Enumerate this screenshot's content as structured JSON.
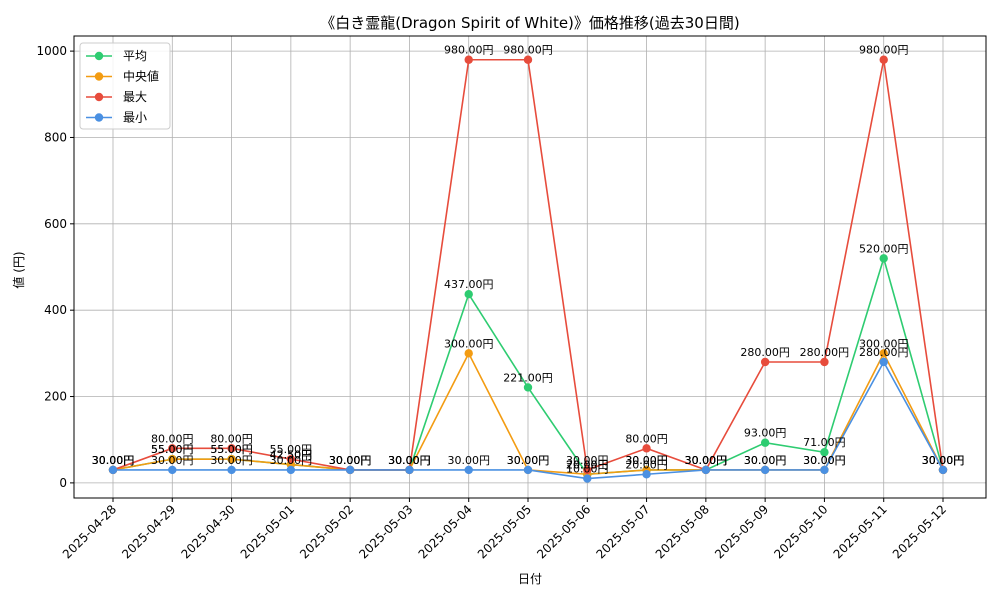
{
  "chart_data": {
    "type": "line",
    "title": "《白き霊龍(Dragon Spirit of White)》価格推移(過去30日間)",
    "xlabel": "日付",
    "ylabel": "値 (円)",
    "ylim": [
      -35,
      1035
    ],
    "yticks": [
      0,
      200,
      400,
      600,
      800,
      1000
    ],
    "grid": true,
    "legend_position": "top-left",
    "value_suffix": "円",
    "categories": [
      "2025-04-28",
      "2025-04-29",
      "2025-04-30",
      "2025-05-01",
      "2025-05-02",
      "2025-05-03",
      "2025-05-04",
      "2025-05-05",
      "2025-05-06",
      "2025-05-07",
      "2025-05-08",
      "2025-05-09",
      "2025-05-10",
      "2025-05-11",
      "2025-05-12"
    ],
    "series": [
      {
        "name": "平均",
        "color": "#2ecc71",
        "values": [
          30,
          55,
          55,
          42.5,
          30,
          30,
          437,
          221,
          20,
          30,
          30,
          93,
          71,
          520,
          30
        ]
      },
      {
        "name": "中央値",
        "color": "#f39c12",
        "values": [
          30,
          55,
          55,
          42.5,
          30,
          30,
          300,
          30,
          20,
          30,
          30,
          30,
          30,
          300,
          30
        ]
      },
      {
        "name": "最大",
        "color": "#e74c3c",
        "values": [
          30,
          80,
          80,
          55,
          30,
          30,
          980,
          980,
          30,
          80,
          30,
          280,
          280,
          980,
          30
        ]
      },
      {
        "name": "最小",
        "color": "#4a90e2",
        "values": [
          30,
          30,
          30,
          30,
          30,
          30,
          30,
          30,
          10,
          20,
          30,
          30,
          30,
          280,
          30
        ]
      }
    ]
  }
}
